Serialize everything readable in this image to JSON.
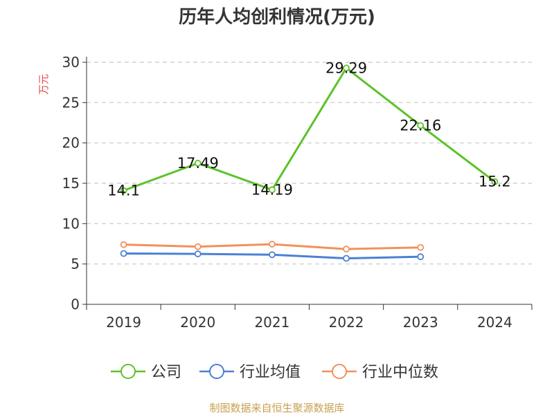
{
  "chart_data": {
    "type": "line",
    "title": "历年人均创利情况(万元)",
    "ylabel": "万元",
    "xlabel": "",
    "categories": [
      "2019",
      "2020",
      "2021",
      "2022",
      "2023",
      "2024"
    ],
    "ylim": [
      0,
      30
    ],
    "yticks": [
      0,
      5,
      10,
      15,
      20,
      25,
      30
    ],
    "grid": true,
    "legend_position": "bottom",
    "series": [
      {
        "name": "公司",
        "color": "#5cc228",
        "values": [
          14.1,
          17.49,
          14.19,
          29.29,
          22.16,
          15.2
        ],
        "labels": [
          "14.1",
          "17.49",
          "14.19",
          "29.29",
          "22.16",
          "15.2"
        ]
      },
      {
        "name": "行业均值",
        "color": "#4a80d6",
        "values": [
          6.3,
          6.25,
          6.15,
          5.7,
          5.9,
          null
        ]
      },
      {
        "name": "行业中位数",
        "color": "#f4905a",
        "values": [
          7.4,
          7.15,
          7.45,
          6.85,
          7.05,
          null
        ]
      }
    ],
    "source": "制图数据来自恒生聚源数据库"
  }
}
